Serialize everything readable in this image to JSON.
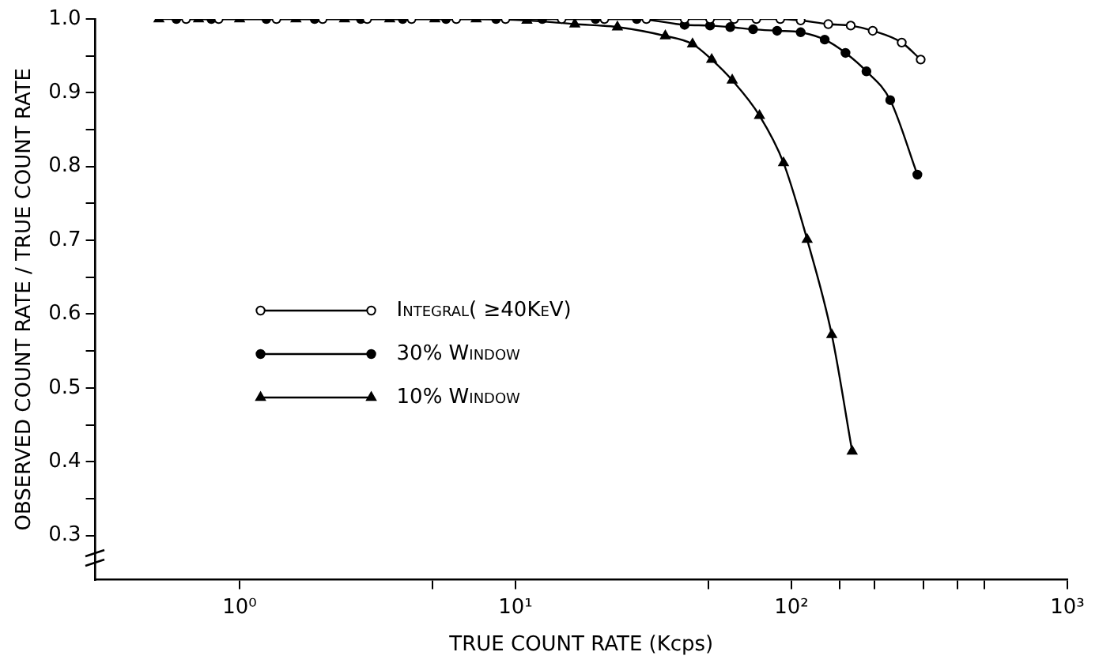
{
  "chart_data": {
    "type": "line",
    "xlabel": "TRUE COUNT RATE (Kcps)",
    "ylabel": "OBSERVED COUNT RATE / TRUE COUNT RATE",
    "log": "x",
    "xlim": [
      0.3,
      1000
    ],
    "ylim": [
      0.24,
      1.0
    ],
    "xticks": [
      {
        "value": 1,
        "label": "10⁰"
      },
      {
        "value": 5,
        "label": null
      },
      {
        "value": 10,
        "label": "10¹"
      },
      {
        "value": 50,
        "label": null
      },
      {
        "value": 100,
        "label": "10²"
      },
      {
        "value": 150,
        "label": null
      },
      {
        "value": 200,
        "label": null
      },
      {
        "value": 300,
        "label": null
      },
      {
        "value": 400,
        "label": null
      },
      {
        "value": 500,
        "label": null
      },
      {
        "value": 1000,
        "label": "10³"
      }
    ],
    "yticks": [
      0.3,
      {
        "value": 0.35,
        "label": null
      },
      {
        "value": 0.4,
        "label": "0.4"
      },
      {
        "value": 0.45,
        "label": null
      },
      {
        "value": 0.5,
        "label": "0.5"
      },
      {
        "value": 0.55,
        "label": null
      },
      {
        "value": 0.6,
        "label": "0.6"
      },
      {
        "value": 0.65,
        "label": null
      },
      {
        "value": 0.7,
        "label": "0.7"
      },
      {
        "value": 0.75,
        "label": null
      },
      {
        "value": 0.8,
        "label": "0.8"
      },
      {
        "value": 0.85,
        "label": null
      },
      {
        "value": 0.9,
        "label": "0.9"
      },
      {
        "value": 0.95,
        "label": null
      },
      {
        "value": 1,
        "label": "1.0"
      }
    ],
    "grid": false,
    "legend": "left",
    "line_style": "solid",
    "series": [
      {
        "name": "Integral( ≥40KeV)",
        "color": "#000000",
        "marker": "circle-open",
        "x": [
          0.64,
          0.84,
          1.36,
          2.0,
          2.9,
          4.2,
          6.1,
          9.2,
          14.7,
          21,
          29.8,
          41,
          50.7,
          62,
          74.6,
          91.1,
          108,
          136,
          164,
          197,
          251,
          294
        ],
        "values": [
          1,
          1,
          1,
          1,
          1,
          1,
          1,
          1,
          1,
          1,
          1,
          1,
          1,
          1,
          1,
          1,
          0.998,
          0.993,
          0.991,
          0.984,
          0.968,
          0.945
        ]
      },
      {
        "name": "30% Window",
        "color": "#000000",
        "marker": "circle",
        "x": [
          0.59,
          0.79,
          1.25,
          1.87,
          2.75,
          3.9,
          5.6,
          8.5,
          12.5,
          19.5,
          27.5,
          41,
          50.7,
          60,
          72.6,
          88.7,
          108,
          132,
          157,
          187,
          228,
          286
        ],
        "values": [
          1,
          1,
          1,
          1,
          1,
          1,
          1,
          1,
          1,
          1,
          1,
          0.992,
          0.991,
          0.989,
          0.986,
          0.984,
          0.982,
          0.972,
          0.954,
          0.929,
          0.89,
          0.789
        ]
      },
      {
        "name": "10% Window",
        "color": "#000000",
        "marker": "triangle",
        "x": [
          0.51,
          0.71,
          1.0,
          1.6,
          2.4,
          3.5,
          5.1,
          7.2,
          11,
          16.4,
          23.4,
          34.9,
          43.8,
          51.4,
          61,
          76.6,
          93.6,
          114,
          140,
          166
        ],
        "values": [
          1,
          1,
          1,
          1,
          1,
          1,
          1,
          1,
          0.998,
          0.993,
          0.989,
          0.977,
          0.966,
          0.945,
          0.917,
          0.869,
          0.805,
          0.701,
          0.572,
          0.414
        ]
      }
    ]
  }
}
